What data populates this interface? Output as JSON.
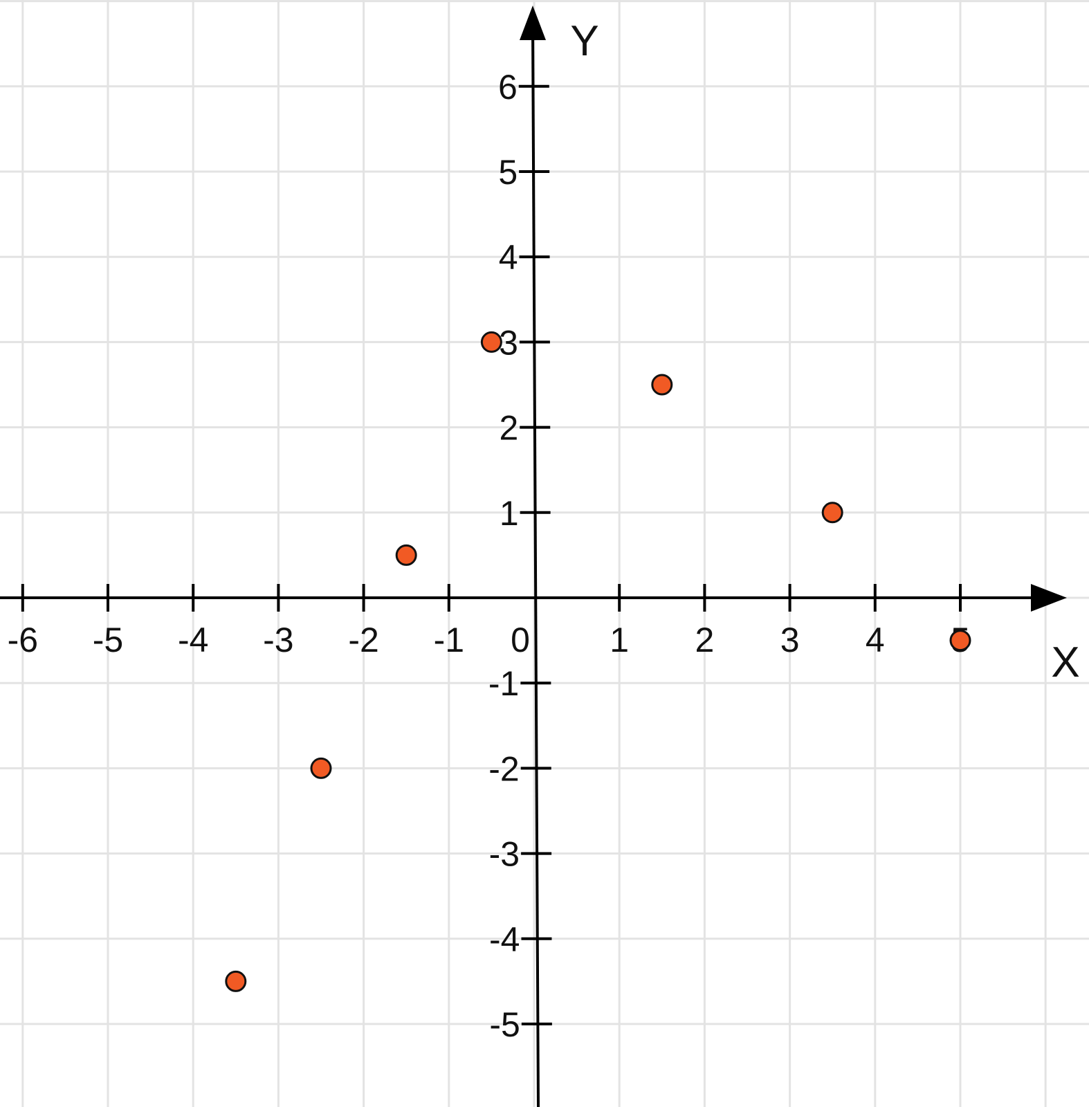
{
  "chart_data": {
    "type": "scatter",
    "title": "",
    "xlabel": "X",
    "ylabel": "Y",
    "origin_label": "0",
    "xlim": [
      -6,
      6
    ],
    "ylim": [
      -5,
      6
    ],
    "x_ticks": [
      -6,
      -5,
      -4,
      -3,
      -2,
      -1,
      1,
      2,
      3,
      4,
      5
    ],
    "y_ticks": [
      -5,
      -4,
      -3,
      -2,
      -1,
      1,
      2,
      3,
      4,
      5,
      6
    ],
    "grid": true,
    "point_color": "#f15a24",
    "points": [
      {
        "x": -3.5,
        "y": -4.5
      },
      {
        "x": -2.5,
        "y": -2
      },
      {
        "x": -1.5,
        "y": 0.5
      },
      {
        "x": -0.5,
        "y": 3
      },
      {
        "x": 1.5,
        "y": 2.5
      },
      {
        "x": 3.5,
        "y": 1
      },
      {
        "x": 5,
        "y": -0.5
      }
    ]
  }
}
